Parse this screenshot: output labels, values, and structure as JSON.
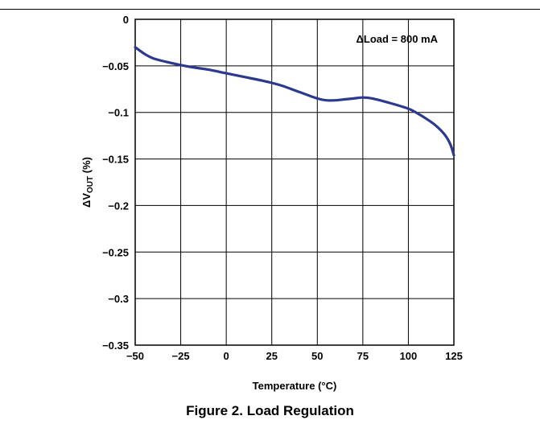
{
  "caption": "Figure 2. Load Regulation",
  "chart_data": {
    "type": "line",
    "xlabel": "Temperature (°C)",
    "ylabel_prefix": "ΔV",
    "ylabel_sub": "OUT",
    "ylabel_suffix": " (%)",
    "annotation": "ΔLoad = 800 mA",
    "xlim": [
      -50,
      125
    ],
    "ylim": [
      -0.35,
      0
    ],
    "xticks": [
      -50,
      -25,
      0,
      25,
      50,
      75,
      100,
      125
    ],
    "xtick_labels": [
      "−50",
      "−25",
      "0",
      "25",
      "50",
      "75",
      "100",
      "125"
    ],
    "yticks": [
      0,
      -0.05,
      -0.1,
      -0.15,
      -0.2,
      -0.25,
      -0.3,
      -0.35
    ],
    "ytick_labels": [
      "0",
      "−0.05",
      "−0.1",
      "−0.15",
      "−0.2",
      "−0.25",
      "−0.3",
      "−0.35"
    ],
    "grid": true,
    "line_color": "#2b3a8f",
    "series": [
      {
        "x": [
          -50,
          -45,
          -40,
          -30,
          -20,
          -10,
          0,
          10,
          20,
          30,
          40,
          50,
          55,
          60,
          65,
          70,
          75,
          80,
          90,
          100,
          105,
          110,
          115,
          120,
          123,
          125
        ],
        "y": [
          -0.03,
          -0.037,
          -0.042,
          -0.047,
          -0.051,
          -0.054,
          -0.058,
          -0.062,
          -0.066,
          -0.071,
          -0.078,
          -0.085,
          -0.087,
          -0.087,
          -0.086,
          -0.085,
          -0.084,
          -0.085,
          -0.09,
          -0.096,
          -0.101,
          -0.107,
          -0.114,
          -0.124,
          -0.134,
          -0.146
        ]
      }
    ]
  }
}
